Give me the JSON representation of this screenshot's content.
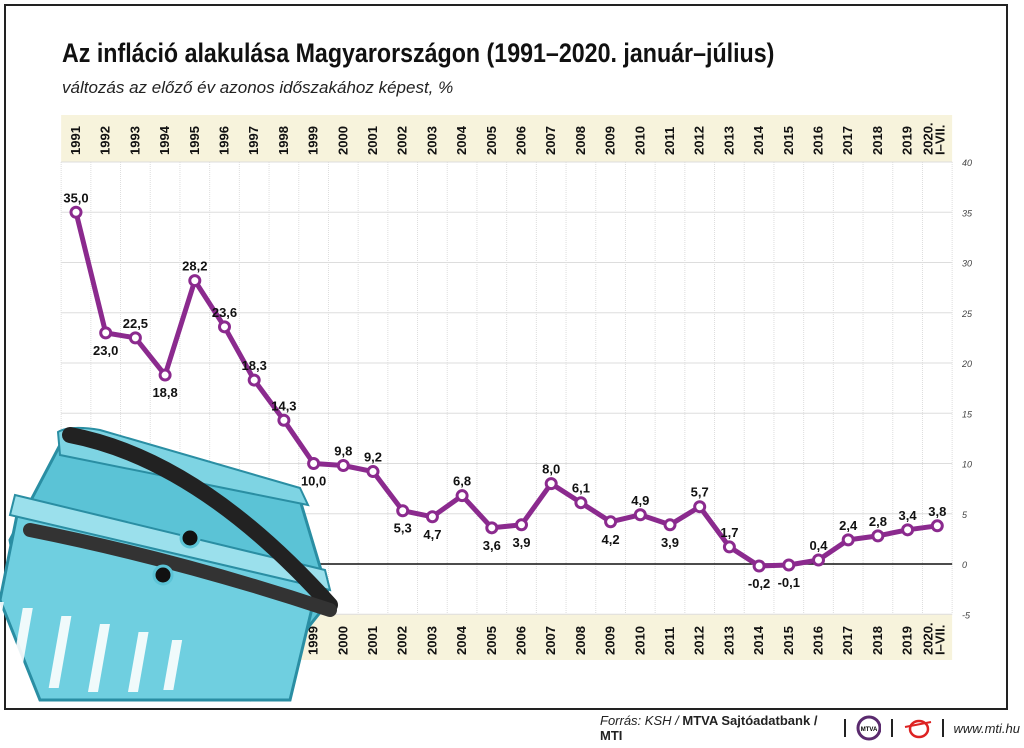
{
  "title": "Az infláció alakulása Magyarországon (1991–2020. január–július)",
  "subtitle": "változás az előző év azonos időszakához képest, %",
  "chart_data": {
    "type": "line",
    "title": "Az infláció alakulása Magyarországon (1991–2020. január–július)",
    "ylabel": "változás az előző év azonos időszakához képest, %",
    "categories": [
      "1991",
      "1992",
      "1993",
      "1994",
      "1995",
      "1996",
      "1997",
      "1998",
      "1999",
      "2000",
      "2001",
      "2002",
      "2003",
      "2004",
      "2005",
      "2006",
      "2007",
      "2008",
      "2009",
      "2010",
      "2011",
      "2012",
      "2013",
      "2014",
      "2015",
      "2016",
      "2017",
      "2018",
      "2019",
      "2020. I–VII."
    ],
    "values": [
      35.0,
      23.0,
      22.5,
      18.8,
      28.2,
      23.6,
      18.3,
      14.3,
      10.0,
      9.8,
      9.2,
      5.3,
      4.7,
      6.8,
      3.6,
      3.9,
      8.0,
      6.1,
      4.2,
      4.9,
      3.9,
      5.7,
      1.7,
      -0.2,
      -0.1,
      0.4,
      2.4,
      2.8,
      3.4,
      3.8
    ],
    "labels": [
      "35,0",
      "23,0",
      "22,5",
      "18,8",
      "28,2",
      "23,6",
      "18,3",
      "14,3",
      "10,0",
      "9,8",
      "9,2",
      "5,3",
      "4,7",
      "6,8",
      "3,6",
      "3,9",
      "8,0",
      "6,1",
      "4,2",
      "4,9",
      "3,9",
      "5,7",
      "1,7",
      "-0,2",
      "-0,1",
      "0,4",
      "2,4",
      "2,8",
      "3,4",
      "3,8"
    ],
    "label_below": [
      false,
      true,
      false,
      true,
      false,
      false,
      false,
      false,
      true,
      false,
      false,
      true,
      true,
      false,
      true,
      true,
      false,
      false,
      true,
      false,
      true,
      false,
      false,
      true,
      true,
      false,
      false,
      false,
      false,
      false
    ],
    "ylim": [
      -5,
      40
    ],
    "yticks": [
      -5,
      0,
      5,
      10,
      15,
      20,
      25,
      30,
      35,
      40
    ],
    "grid": true,
    "line_color": "#8b2a8e",
    "band_color": "#f7f3dc"
  },
  "footer": {
    "source_prefix": "Forrás: KSH / ",
    "source_bold": "MTVA Sajtóadatbank / MTI",
    "mtva_logo": "MTVA",
    "website": "www.mti.hu"
  }
}
